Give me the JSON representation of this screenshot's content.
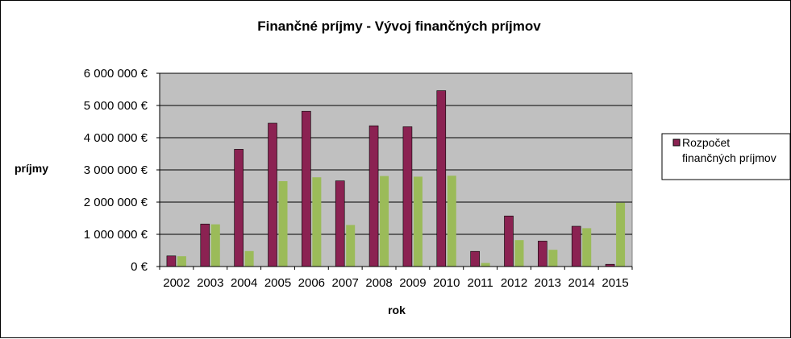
{
  "chart_data": {
    "type": "bar",
    "title": "Finančné  príjmy - Vývoj finančných príjmov",
    "xlabel": "rok",
    "ylabel": "príjmy",
    "categories": [
      "2002",
      "2003",
      "2004",
      "2005",
      "2006",
      "2007",
      "2008",
      "2009",
      "2010",
      "2011",
      "2012",
      "2013",
      "2014",
      "2015"
    ],
    "series": [
      {
        "name": "Rozpočet finančných príjmov",
        "color": "#8B2252",
        "values": [
          330000,
          1320000,
          3640000,
          4450000,
          4820000,
          2660000,
          4370000,
          4340000,
          5460000,
          470000,
          1570000,
          790000,
          1250000,
          70000
        ]
      },
      {
        "name": "",
        "color": "#9BBB59",
        "values": [
          320000,
          1310000,
          480000,
          2650000,
          2770000,
          1290000,
          2810000,
          2790000,
          2820000,
          110000,
          820000,
          520000,
          1190000,
          1980000
        ]
      }
    ],
    "ylim": [
      0,
      6000000
    ],
    "yticks": [
      {
        "value": 0,
        "label": "0 €"
      },
      {
        "value": 1000000,
        "label": "1 000 000 €"
      },
      {
        "value": 2000000,
        "label": "2 000 000 €"
      },
      {
        "value": 3000000,
        "label": "3 000 000 €"
      },
      {
        "value": 4000000,
        "label": "4 000 000 €"
      },
      {
        "value": 5000000,
        "label": "5 000 000 €"
      },
      {
        "value": 6000000,
        "label": "6 000 000 €"
      }
    ],
    "grid": true,
    "plot_background": "#C0C0C0",
    "legend": {
      "position": "right",
      "lines": [
        "Rozpočet",
        "finančných príjmov"
      ]
    }
  }
}
